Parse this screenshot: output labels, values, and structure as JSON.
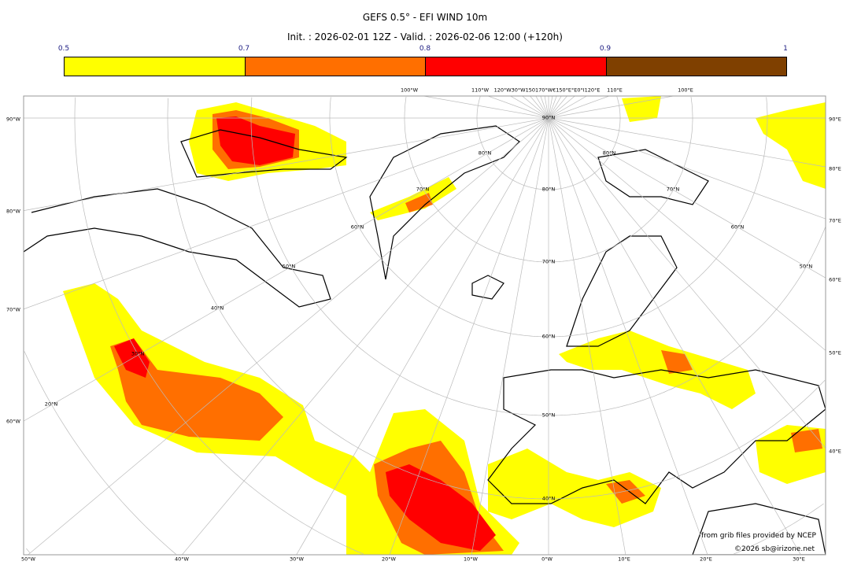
{
  "title": "GEFS 0.5° - EFI WIND 10m",
  "subtitle": "Init. : 2026-02-01 12Z - Valid. : 2026-02-06 12:00 (+120h)",
  "colorbar": {
    "ticks": [
      "0.5",
      "0.7",
      "0.8",
      "0.9",
      "1"
    ],
    "colors": [
      "#ffff00",
      "#ff6f00",
      "#ff0000",
      "#7f4000"
    ]
  },
  "map": {
    "background": "#ffffff",
    "grid_color": "#bbbbbb",
    "top_labels": [
      "100°W",
      "110°W",
      "120°W30°W150170°W€150°E°E0°I120°E",
      "110°E",
      "100°E"
    ],
    "left_labels": [
      "90°W",
      "80°W",
      "70°W",
      "60°W"
    ],
    "right_labels": [
      "90°E",
      "80°E",
      "70°E",
      "60°E",
      "50°E",
      "40°E"
    ],
    "bottom_labels": [
      "50°W",
      "40°W",
      "30°W",
      "20°W",
      "10°W",
      "0°W",
      "10°E",
      "20°E",
      "30°E"
    ],
    "lat_labels_center": [
      "90°N",
      "80°N",
      "70°N",
      "60°N",
      "50°N",
      "40°N"
    ],
    "lat_labels_left": [
      "80°N",
      "70°N",
      "60°N",
      "50°N",
      "40°N",
      "30°N",
      "20°N"
    ],
    "lat_labels_right": [
      "80°N",
      "70°N",
      "60°N",
      "50°N"
    ]
  },
  "credits": {
    "source": "from grib files provided by NCEP",
    "copyright": "©2026 sb@irizone.net"
  }
}
